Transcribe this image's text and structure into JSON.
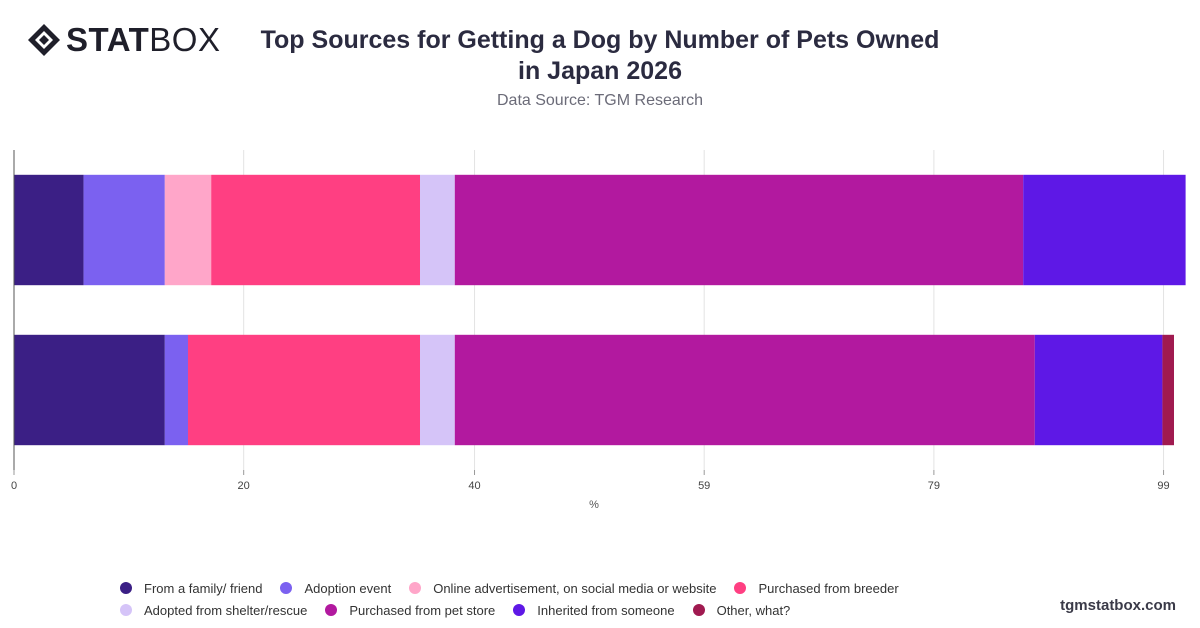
{
  "brand": {
    "logo_stat": "STAT",
    "logo_box": "BOX",
    "watermark": "tgmstatbox.com"
  },
  "header": {
    "title": "Top Sources for Getting a Dog by Number of Pets Owned in Japan 2026",
    "subtitle": "Data Source: TGM Research"
  },
  "chart_data": {
    "type": "bar",
    "orientation": "horizontal",
    "stacked": true,
    "title": "Top Sources for Getting a Dog by Number of Pets Owned in Japan 2026",
    "subtitle": "Data Source: TGM Research",
    "xlabel": "%",
    "ylabel": "",
    "xlim": [
      0,
      100
    ],
    "x_ticks": [
      "0",
      "20",
      "40",
      "59",
      "79",
      "99"
    ],
    "x_tick_values": [
      0,
      19.8,
      39.7,
      59.5,
      79.3,
      99.1
    ],
    "grid": true,
    "legend_position": "bottom",
    "categories": [
      "",
      ""
    ],
    "series": [
      {
        "name": "From a family/ friend",
        "color": "#3b1f85",
        "values": [
          6,
          13
        ]
      },
      {
        "name": "Adoption event",
        "color": "#7b61f0",
        "values": [
          7,
          2
        ]
      },
      {
        "name": "Online advertisement, on social media or website",
        "color": "#ffa6c9",
        "values": [
          4,
          0
        ]
      },
      {
        "name": "Purchased from breeder",
        "color": "#ff3f82",
        "values": [
          18,
          20
        ]
      },
      {
        "name": "Adopted from shelter/rescue",
        "color": "#d5c4f8",
        "values": [
          3,
          3
        ]
      },
      {
        "name": "Purchased from pet store",
        "color": "#b2199f",
        "values": [
          49,
          50
        ]
      },
      {
        "name": "Inherited from someone",
        "color": "#5e18e6",
        "values": [
          14,
          11
        ]
      },
      {
        "name": "Other, what?",
        "color": "#a01a50",
        "values": [
          0,
          1
        ]
      }
    ]
  }
}
